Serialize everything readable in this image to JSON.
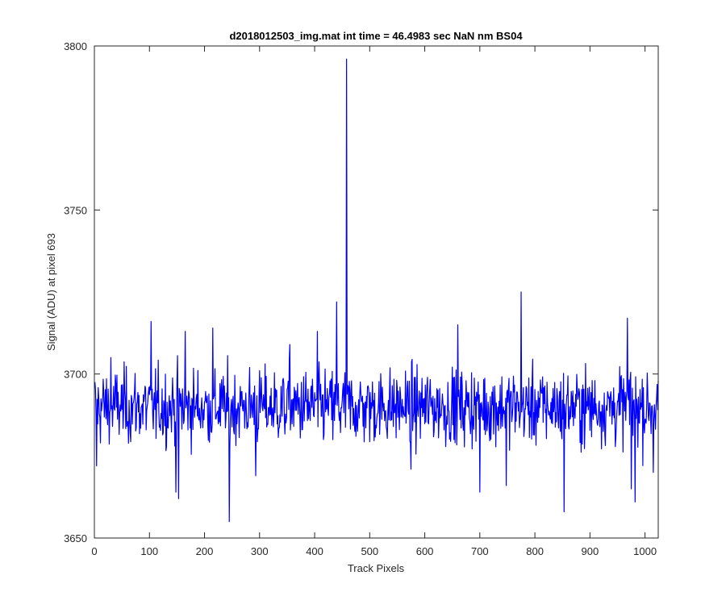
{
  "figure": {
    "background": "#ffffff"
  },
  "chart_data": {
    "type": "line",
    "title": "d2018012503_img.mat int time = 46.4983 sec  NaN nm BS04",
    "xlabel": "Track Pixels",
    "ylabel": "Signal (ADU) at pixel 693",
    "xlim": [
      0,
      1024
    ],
    "ylim": [
      3650,
      3800
    ],
    "xticks": [
      0,
      100,
      200,
      300,
      400,
      500,
      600,
      700,
      800,
      900,
      1000
    ],
    "xtick_labels": [
      "0",
      "100",
      "200",
      "300",
      "400",
      "500",
      "600",
      "700",
      "800",
      "900",
      "1000"
    ],
    "yticks": [
      3650,
      3700,
      3750,
      3800
    ],
    "ytick_labels": [
      "3650",
      "3700",
      "3750",
      "3800"
    ],
    "grid": false,
    "box": true,
    "line_color": "#0000ff",
    "series": [
      {
        "x_start": 1,
        "x_step": 1,
        "n_points": 1024,
        "baseline": 3690,
        "noise_range": [
          3670,
          3710
        ],
        "notable_points": [
          {
            "x": 4,
            "y": 3672
          },
          {
            "x": 30,
            "y": 3705
          },
          {
            "x": 103,
            "y": 3716
          },
          {
            "x": 148,
            "y": 3664
          },
          {
            "x": 153,
            "y": 3662
          },
          {
            "x": 165,
            "y": 3713
          },
          {
            "x": 215,
            "y": 3714
          },
          {
            "x": 245,
            "y": 3655
          },
          {
            "x": 293,
            "y": 3669
          },
          {
            "x": 355,
            "y": 3709
          },
          {
            "x": 405,
            "y": 3713
          },
          {
            "x": 440,
            "y": 3722
          },
          {
            "x": 458,
            "y": 3796
          },
          {
            "x": 575,
            "y": 3671
          },
          {
            "x": 660,
            "y": 3715
          },
          {
            "x": 700,
            "y": 3664
          },
          {
            "x": 748,
            "y": 3666
          },
          {
            "x": 775,
            "y": 3725
          },
          {
            "x": 853,
            "y": 3658
          },
          {
            "x": 968,
            "y": 3717
          },
          {
            "x": 975,
            "y": 3665
          },
          {
            "x": 982,
            "y": 3661
          },
          {
            "x": 1015,
            "y": 3670
          }
        ]
      }
    ]
  }
}
